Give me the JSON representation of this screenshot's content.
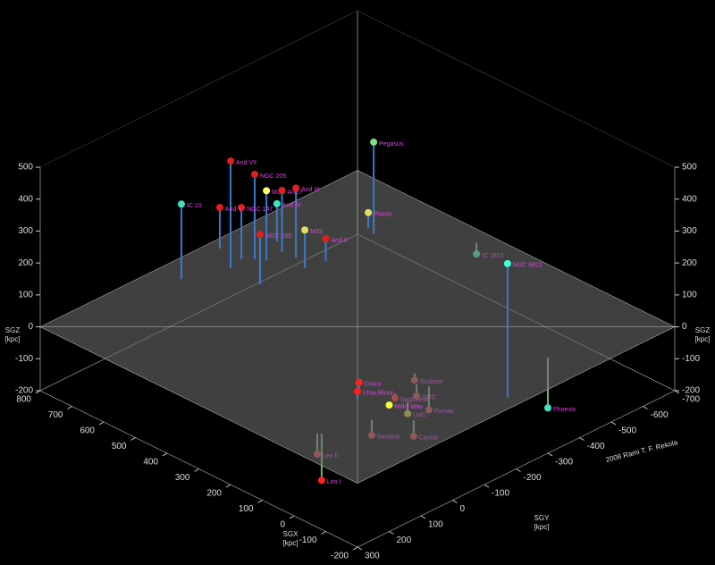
{
  "chart_data": {
    "type": "scatter3d",
    "x_axis_label": "SGX",
    "x_axis_unit": "[kpc]",
    "y_axis_label": "SGY",
    "y_axis_unit": "[kpc]",
    "z_axis_label": "SGZ",
    "z_axis_unit": "[kpc]",
    "credit": "2008 Rami T. F. Rekola",
    "xlim": [
      -200,
      800
    ],
    "ylim": [
      -700,
      300
    ],
    "zlim": [
      -200,
      500
    ],
    "xticks": [
      800,
      700,
      600,
      500,
      400,
      300,
      200,
      100,
      0,
      -100,
      -200
    ],
    "yticks": [
      300,
      200,
      100,
      0,
      -100,
      -200,
      -300,
      -400,
      -500,
      -600,
      -700
    ],
    "zticks": [
      500,
      400,
      300,
      200,
      100,
      0,
      -100,
      -200
    ],
    "points": [
      {
        "name": "IC 10",
        "x": 730,
        "y": -75,
        "z": 235,
        "color": "#40e0c0"
      },
      {
        "name": "And VII",
        "x": 687,
        "y": -187,
        "z": 336,
        "color": "#e02020"
      },
      {
        "name": "NGC 205",
        "x": 678,
        "y": -254,
        "z": 266,
        "color": "#e02020"
      },
      {
        "name": "NGC 147",
        "x": 699,
        "y": -233,
        "z": 162,
        "color": "#e02020"
      },
      {
        "name": "And V",
        "x": 767,
        "y": -233,
        "z": 129,
        "color": "#e02020"
      },
      {
        "name": "M31",
        "x": 655,
        "y": -268,
        "z": 219,
        "color": "#ffff60"
      },
      {
        "name": "And I",
        "x": 658,
        "y": -320,
        "z": 193,
        "color": "#e02020"
      },
      {
        "name": "And III",
        "x": 618,
        "y": -324,
        "z": 218,
        "color": "#e02020"
      },
      {
        "name": "And IV",
        "x": 700,
        "y": -346,
        "z": 118,
        "color": "#40e0c0"
      },
      {
        "name": "M33",
        "x": 570,
        "y": -304,
        "z": 120,
        "color": "#e0e060"
      },
      {
        "name": "And II",
        "x": 560,
        "y": -360,
        "z": 70,
        "color": "#e02020"
      },
      {
        "name": "NGC 185",
        "x": 589,
        "y": -182,
        "z": 157,
        "color": "#e02020"
      },
      {
        "name": "Pegasus",
        "x": 571,
        "y": -522,
        "z": 288,
        "color": "#80e080"
      },
      {
        "name": "Pisces",
        "x": 599,
        "y": -533,
        "z": 48,
        "color": "#e0e060"
      },
      {
        "name": "IC 1613",
        "x": 382,
        "y": -657,
        "z": -36,
        "color": "#40e0c0"
      },
      {
        "name": "NGC 6822",
        "x": -163,
        "y": -210,
        "z": 420,
        "color": "#40ffd0"
      },
      {
        "name": "Phoenix",
        "x": -99,
        "y": -401,
        "z": -157,
        "color": "#40e0c0"
      },
      {
        "name": "Draco",
        "x": 85,
        "y": 10,
        "z": 34,
        "color": "#ff2020"
      },
      {
        "name": "Ursa Minor",
        "x": 65,
        "y": 35,
        "z": 28,
        "color": "#ff2020"
      },
      {
        "name": "Sagittarius",
        "x": 28,
        "y": -46,
        "z": -14,
        "color": "#ff2020"
      },
      {
        "name": "Milky Way",
        "x": 0,
        "y": 0,
        "z": 0,
        "color": "#ffff40"
      },
      {
        "name": "LMC",
        "x": -20,
        "y": -38,
        "z": -36,
        "color": "#c0c040"
      },
      {
        "name": "SMC",
        "x": 23,
        "y": -109,
        "z": -36,
        "color": "#c04040"
      },
      {
        "name": "Sculptor",
        "x": 60,
        "y": -140,
        "z": -20,
        "color": "#c04040"
      },
      {
        "name": "Fornax",
        "x": -3,
        "y": -122,
        "z": -73,
        "color": "#c04040"
      },
      {
        "name": "Carina",
        "x": -87,
        "y": 10,
        "z": -50,
        "color": "#c04040"
      },
      {
        "name": "Sextans",
        "x": -20,
        "y": 75,
        "z": -48,
        "color": "#c04040"
      },
      {
        "name": "Leo II",
        "x": 22,
        "y": 205,
        "z": -64,
        "color": "#c04040"
      },
      {
        "name": "Leo I",
        "x": 15,
        "y": 198,
        "z": -146,
        "color": "#ff2020"
      }
    ]
  }
}
